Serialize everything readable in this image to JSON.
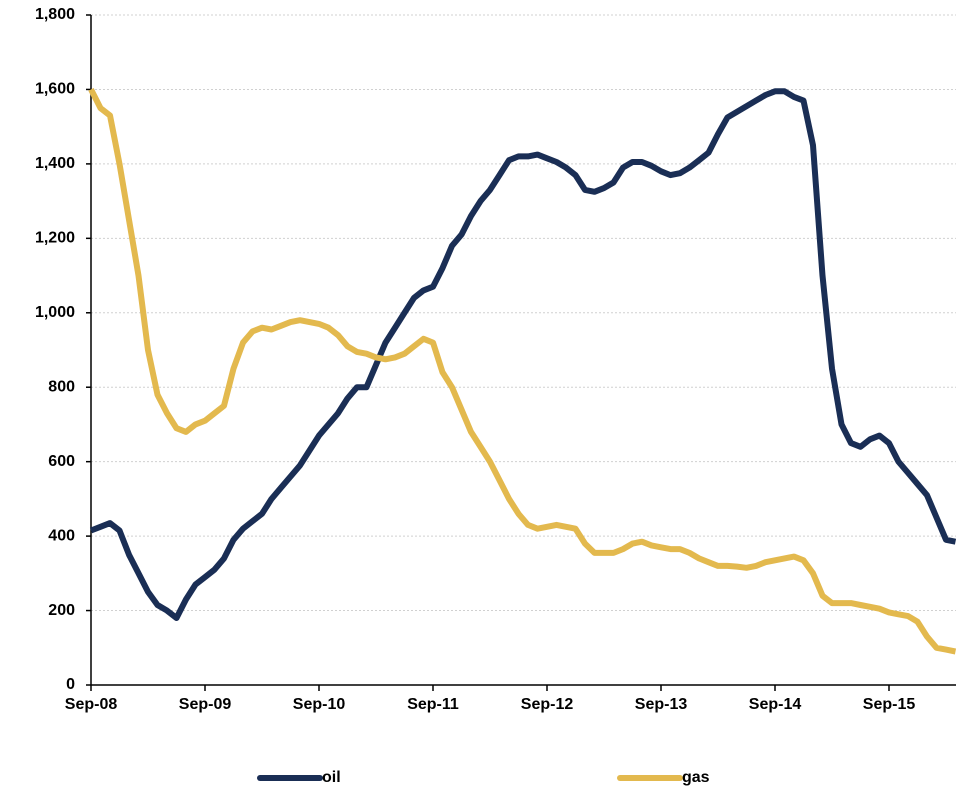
{
  "chart_data": {
    "type": "line",
    "x": [
      "Sep-08",
      "Oct-08",
      "Nov-08",
      "Dec-08",
      "Jan-09",
      "Feb-09",
      "Mar-09",
      "Apr-09",
      "May-09",
      "Jun-09",
      "Jul-09",
      "Aug-09",
      "Sep-09",
      "Oct-09",
      "Nov-09",
      "Dec-09",
      "Jan-10",
      "Feb-10",
      "Mar-10",
      "Apr-10",
      "May-10",
      "Jun-10",
      "Jul-10",
      "Aug-10",
      "Sep-10",
      "Oct-10",
      "Nov-10",
      "Dec-10",
      "Jan-11",
      "Feb-11",
      "Mar-11",
      "Apr-11",
      "May-11",
      "Jun-11",
      "Jul-11",
      "Aug-11",
      "Sep-11",
      "Oct-11",
      "Nov-11",
      "Dec-11",
      "Jan-12",
      "Feb-12",
      "Mar-12",
      "Apr-12",
      "May-12",
      "Jun-12",
      "Jul-12",
      "Aug-12",
      "Sep-12",
      "Oct-12",
      "Nov-12",
      "Dec-12",
      "Jan-13",
      "Feb-13",
      "Mar-13",
      "Apr-13",
      "May-13",
      "Jun-13",
      "Jul-13",
      "Aug-13",
      "Sep-13",
      "Oct-13",
      "Nov-13",
      "Dec-13",
      "Jan-14",
      "Feb-14",
      "Mar-14",
      "Apr-14",
      "May-14",
      "Jun-14",
      "Jul-14",
      "Aug-14",
      "Sep-14",
      "Oct-14",
      "Nov-14",
      "Dec-14",
      "Jan-15",
      "Feb-15",
      "Mar-15",
      "Apr-15",
      "May-15",
      "Jun-15",
      "Jul-15",
      "Aug-15",
      "Sep-15",
      "Oct-15",
      "Nov-15",
      "Dec-15",
      "Jan-16",
      "Feb-16",
      "Mar-16",
      "Apr-16"
    ],
    "xticks": [
      "Sep-08",
      "Sep-09",
      "Sep-10",
      "Sep-11",
      "Sep-12",
      "Sep-13",
      "Sep-14",
      "Sep-15"
    ],
    "series": [
      {
        "name": "oil",
        "color": "#1a2e55",
        "values": [
          415,
          425,
          435,
          415,
          350,
          300,
          250,
          215,
          200,
          180,
          230,
          270,
          290,
          310,
          340,
          390,
          420,
          440,
          460,
          500,
          530,
          560,
          590,
          630,
          670,
          700,
          730,
          770,
          800,
          800,
          860,
          920,
          960,
          1000,
          1040,
          1060,
          1070,
          1120,
          1180,
          1210,
          1260,
          1300,
          1330,
          1370,
          1410,
          1420,
          1420,
          1425,
          1415,
          1405,
          1390,
          1370,
          1330,
          1325,
          1335,
          1350,
          1390,
          1405,
          1405,
          1395,
          1380,
          1370,
          1375,
          1390,
          1410,
          1430,
          1480,
          1525,
          1540,
          1555,
          1570,
          1585,
          1595,
          1595,
          1580,
          1570,
          1450,
          1100,
          850,
          700,
          650,
          640,
          660,
          670,
          650,
          600,
          570,
          540,
          510,
          450,
          390,
          385
        ]
      },
      {
        "name": "gas",
        "color": "#e3b94e",
        "values": [
          1600,
          1550,
          1530,
          1400,
          1250,
          1100,
          900,
          780,
          730,
          690,
          680,
          700,
          710,
          730,
          750,
          850,
          920,
          950,
          960,
          955,
          965,
          975,
          980,
          975,
          970,
          960,
          940,
          910,
          895,
          890,
          880,
          875,
          880,
          890,
          910,
          930,
          920,
          840,
          800,
          740,
          680,
          640,
          600,
          550,
          500,
          460,
          430,
          420,
          425,
          430,
          425,
          420,
          380,
          355,
          355,
          355,
          365,
          380,
          385,
          375,
          370,
          365,
          365,
          355,
          340,
          330,
          320,
          320,
          318,
          315,
          320,
          330,
          335,
          340,
          345,
          335,
          300,
          240,
          220,
          220,
          220,
          215,
          210,
          205,
          195,
          190,
          185,
          170,
          130,
          100,
          95,
          90
        ]
      }
    ],
    "ylim": [
      0,
      1800
    ],
    "yticks": [
      0,
      {
        "value": 200,
        "label": "200"
      },
      {
        "value": 400,
        "label": "400"
      },
      {
        "value": 600,
        "label": "600"
      },
      {
        "value": 800,
        "label": "800"
      },
      {
        "value": 1000,
        "label": "1,000"
      },
      {
        "value": 1200,
        "label": "1,200"
      },
      {
        "value": 1400,
        "label": "1,400"
      },
      {
        "value": 1600,
        "label": "1,600"
      },
      {
        "value": 1800,
        "label": "1,800"
      }
    ],
    "grid": true,
    "legend": "bottom"
  }
}
